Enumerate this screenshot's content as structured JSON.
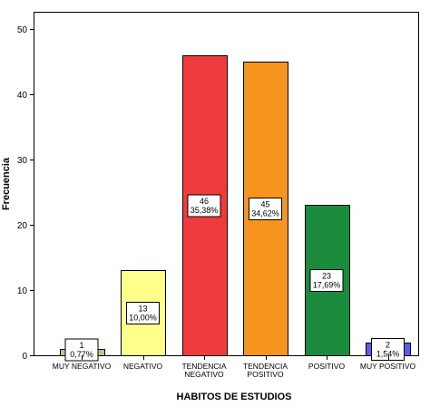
{
  "chart_data": {
    "type": "bar",
    "xlabel": "HABITOS DE ESTUDIOS",
    "ylabel": "Frecuencia",
    "ylim": [
      0,
      50
    ],
    "yticks": [
      0,
      10,
      20,
      30,
      40,
      50
    ],
    "grid": false,
    "categories": [
      {
        "lines": [
          "MUY NEGATIVO"
        ],
        "value": 1,
        "count_label": "1",
        "percent_label": "0,77%",
        "color": "#c9bd8c"
      },
      {
        "lines": [
          "NEGATIVO"
        ],
        "value": 13,
        "count_label": "13",
        "percent_label": "10,00%",
        "color": "#ffff8c"
      },
      {
        "lines": [
          "TENDENCIA",
          "NEGATIVO"
        ],
        "value": 46,
        "count_label": "46",
        "percent_label": "35,38%",
        "color": "#ef3b3b"
      },
      {
        "lines": [
          "TENDENCIA",
          "POSITIVO"
        ],
        "value": 45,
        "count_label": "45",
        "percent_label": "34,62%",
        "color": "#f7941d"
      },
      {
        "lines": [
          "POSITIVO"
        ],
        "value": 23,
        "count_label": "23",
        "percent_label": "17,69%",
        "color": "#1a8a3c"
      },
      {
        "lines": [
          "MUY POSITIVO"
        ],
        "value": 2,
        "count_label": "2",
        "percent_label": "1,54%",
        "color": "#5b5bef"
      }
    ]
  }
}
